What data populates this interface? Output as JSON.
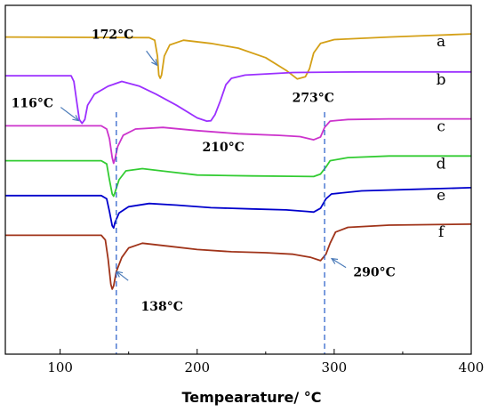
{
  "chart_data": {
    "type": "line",
    "title": "",
    "xlabel": "Tempearature/ °C",
    "ylabel": "",
    "xlim": [
      60,
      400
    ],
    "x_ticks": [
      100,
      200,
      300,
      400
    ],
    "y_ticks_shown": false,
    "grid": false,
    "legend": "none",
    "series": [
      {
        "name": "a",
        "color": "#d4a017",
        "points": [
          [
            60,
            100.0
          ],
          [
            165,
            99.8
          ],
          [
            169,
            99.0
          ],
          [
            171,
            94.0
          ],
          [
            172,
            88.0
          ],
          [
            173,
            87.0
          ],
          [
            174,
            88.0
          ],
          [
            176,
            94.0
          ],
          [
            180,
            97.5
          ],
          [
            190,
            99.0
          ],
          [
            210,
            98.0
          ],
          [
            230,
            96.5
          ],
          [
            250,
            93.5
          ],
          [
            265,
            89.5
          ],
          [
            273,
            86.8
          ],
          [
            279,
            87.5
          ],
          [
            282,
            90.0
          ],
          [
            285,
            95.0
          ],
          [
            290,
            98.0
          ],
          [
            300,
            99.2
          ],
          [
            340,
            100.0
          ],
          [
            370,
            100.5
          ],
          [
            400,
            101.0
          ]
        ]
      },
      {
        "name": "b",
        "color": "#9b30ff",
        "points": [
          [
            60,
            87.8
          ],
          [
            108,
            87.8
          ],
          [
            110,
            86.0
          ],
          [
            112,
            80.0
          ],
          [
            114,
            74.0
          ],
          [
            116,
            72.8
          ],
          [
            118,
            74.0
          ],
          [
            120,
            78.5
          ],
          [
            125,
            82.0
          ],
          [
            135,
            84.5
          ],
          [
            145,
            86.0
          ],
          [
            158,
            84.5
          ],
          [
            170,
            82.0
          ],
          [
            185,
            78.5
          ],
          [
            200,
            74.5
          ],
          [
            207,
            73.5
          ],
          [
            210,
            73.6
          ],
          [
            213,
            75.5
          ],
          [
            217,
            80.0
          ],
          [
            221,
            85.0
          ],
          [
            225,
            87.0
          ],
          [
            235,
            88.0
          ],
          [
            270,
            88.8
          ],
          [
            320,
            89.0
          ],
          [
            400,
            89.0
          ]
        ]
      },
      {
        "name": "c",
        "color": "#cc33cc",
        "points": [
          [
            60,
            72.0
          ],
          [
            130,
            72.0
          ],
          [
            134,
            71.0
          ],
          [
            136,
            68.0
          ],
          [
            138,
            62.0
          ],
          [
            139,
            60.2
          ],
          [
            140,
            61.5
          ],
          [
            142,
            65.5
          ],
          [
            146,
            69.0
          ],
          [
            155,
            71.0
          ],
          [
            175,
            71.5
          ],
          [
            200,
            70.5
          ],
          [
            230,
            69.5
          ],
          [
            260,
            69.0
          ],
          [
            275,
            68.6
          ],
          [
            285,
            67.6
          ],
          [
            290,
            68.5
          ],
          [
            293,
            71.5
          ],
          [
            297,
            73.5
          ],
          [
            310,
            74.0
          ],
          [
            340,
            74.2
          ],
          [
            400,
            74.2
          ]
        ]
      },
      {
        "name": "d",
        "color": "#33cc33",
        "points": [
          [
            60,
            61.0
          ],
          [
            130,
            61.0
          ],
          [
            134,
            60.0
          ],
          [
            136,
            55.0
          ],
          [
            138,
            50.5
          ],
          [
            139,
            49.8
          ],
          [
            140,
            51.0
          ],
          [
            143,
            55.0
          ],
          [
            148,
            57.8
          ],
          [
            160,
            58.5
          ],
          [
            180,
            57.5
          ],
          [
            200,
            56.5
          ],
          [
            240,
            56.2
          ],
          [
            270,
            56.1
          ],
          [
            285,
            56.0
          ],
          [
            290,
            56.8
          ],
          [
            294,
            59.0
          ],
          [
            297,
            61.0
          ],
          [
            310,
            62.0
          ],
          [
            340,
            62.5
          ],
          [
            400,
            62.5
          ]
        ]
      },
      {
        "name": "e",
        "color": "#0000cc",
        "points": [
          [
            60,
            50.0
          ],
          [
            130,
            50.0
          ],
          [
            134,
            49.0
          ],
          [
            136,
            45.0
          ],
          [
            138,
            40.5
          ],
          [
            139,
            39.8
          ],
          [
            140,
            41.5
          ],
          [
            143,
            44.5
          ],
          [
            150,
            46.5
          ],
          [
            165,
            47.5
          ],
          [
            185,
            47.0
          ],
          [
            210,
            46.2
          ],
          [
            240,
            45.8
          ],
          [
            265,
            45.5
          ],
          [
            280,
            45.0
          ],
          [
            285,
            44.8
          ],
          [
            290,
            46.0
          ],
          [
            294,
            49.0
          ],
          [
            298,
            50.5
          ],
          [
            320,
            51.5
          ],
          [
            360,
            52.0
          ],
          [
            400,
            52.5
          ]
        ]
      },
      {
        "name": "f",
        "color": "#a0341a",
        "points": [
          [
            60,
            37.5
          ],
          [
            130,
            37.5
          ],
          [
            133,
            36.0
          ],
          [
            135,
            30.0
          ],
          [
            137,
            22.0
          ],
          [
            138,
            20.5
          ],
          [
            139,
            21.5
          ],
          [
            141,
            26.0
          ],
          [
            145,
            30.5
          ],
          [
            150,
            33.5
          ],
          [
            160,
            35.0
          ],
          [
            180,
            34.0
          ],
          [
            200,
            33.0
          ],
          [
            225,
            32.3
          ],
          [
            250,
            32.0
          ],
          [
            270,
            31.5
          ],
          [
            283,
            30.5
          ],
          [
            290,
            29.5
          ],
          [
            294,
            31.5
          ],
          [
            297,
            35.0
          ],
          [
            301,
            38.5
          ],
          [
            310,
            40.0
          ],
          [
            340,
            40.7
          ],
          [
            400,
            41.0
          ]
        ]
      }
    ],
    "reference_lines": [
      {
        "x": 141,
        "color": "#3366cc",
        "style": "dashed"
      },
      {
        "x": 293,
        "color": "#3366cc",
        "style": "dashed"
      }
    ],
    "annotations": [
      {
        "text": "172°C",
        "x": 172,
        "y": 90.0,
        "arrow": true
      },
      {
        "text": "273°C",
        "x": 273,
        "y": 86.8,
        "arrow": false
      },
      {
        "text": "116°C",
        "x": 116,
        "y": 72.8,
        "arrow": true
      },
      {
        "text": "210°C",
        "x": 210,
        "y": 73.5,
        "arrow": false
      },
      {
        "text": "138°C",
        "x": 138,
        "y": 21.0,
        "arrow": true
      },
      {
        "text": "290°C",
        "x": 293,
        "y": 29.0,
        "arrow": true
      }
    ]
  }
}
